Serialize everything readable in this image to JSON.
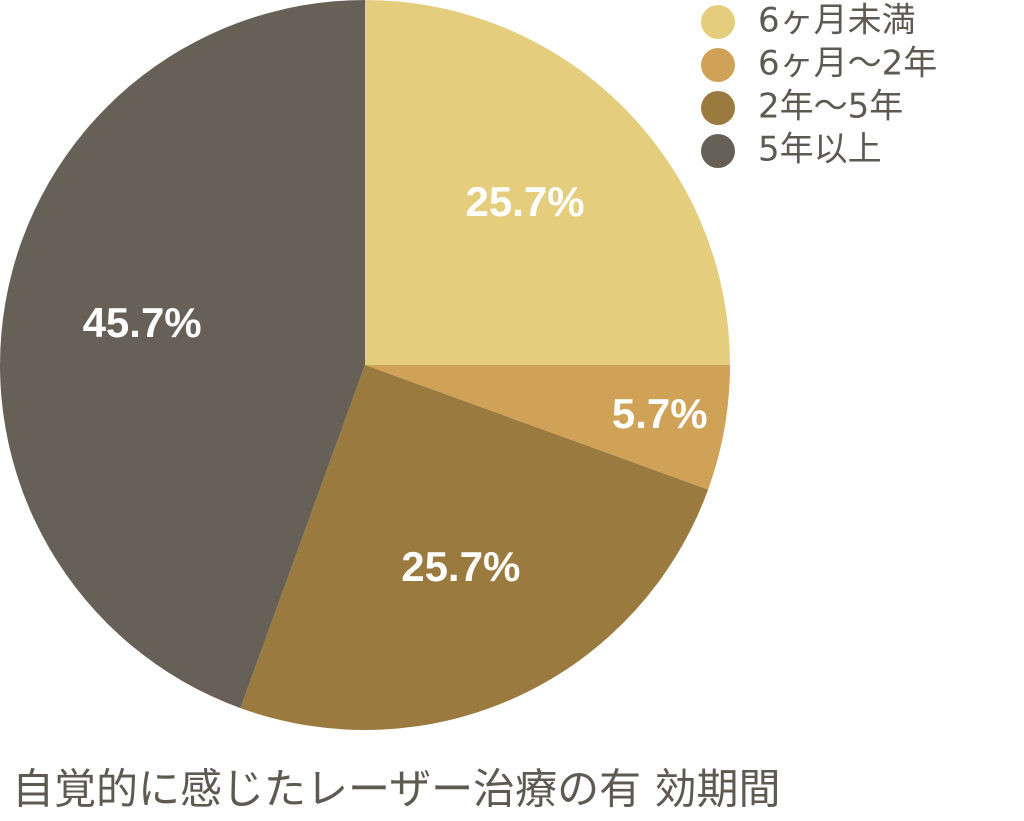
{
  "chart_data": {
    "type": "pie",
    "title": "自覚的に感じたレーザー治療の有 効期間",
    "categories": [
      "6ヶ月未満",
      "6ヶ月〜2年",
      "2年〜5年",
      "5年以上"
    ],
    "values": [
      25.7,
      5.7,
      25.7,
      45.7
    ],
    "value_labels": [
      "25.7%",
      "5.7%",
      "25.7%",
      "45.7%"
    ],
    "colors": [
      "#e5cd7e",
      "#cfa258",
      "#9a7a3e",
      "#676056"
    ]
  }
}
